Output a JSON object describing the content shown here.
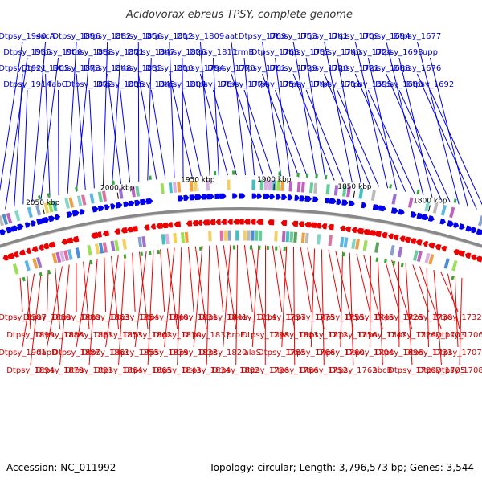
{
  "title": "Acidovorax ebreus TPSY, complete genome",
  "footer": {
    "accession": "Accession: NC_011992",
    "topology": "Topology: circular; Length: 3,796,573 bp; Genes: 3,544"
  },
  "scale_ticks": [
    "2050 kbp",
    "2000 kbp",
    "1950 kbp",
    "1900 kbp",
    "1850 kbp",
    "1800 kbp"
  ],
  "colors": {
    "forward_strand": "#0000ee",
    "reverse_strand": "#ee0000",
    "top_labels": "#0000cc",
    "bottom_labels": "#cc0000",
    "backbone": "#888888"
  },
  "top_labels": [
    "Dtpsy_1940",
    "Dtpsy_1935",
    "Dtpsy_1921",
    "Dtpsy_1914",
    "sucA",
    "Dtpsy_1900",
    "Dtpsy_1905",
    "fabG",
    "Dtpsy_1896",
    "Dtpsy_1888",
    "Dtpsy_1873",
    "Dtpsy_1872",
    "Dtpsy_1882",
    "Dtpsy_1871",
    "Dtpsy_1848",
    "Dtpsy_1836",
    "Dtpsy_1856",
    "Dtpsy_1847",
    "Dtpsy_1835",
    "Dtpsy_1845",
    "Dtpsy_1812",
    "Dtpsy_1826",
    "Dtpsy_1810",
    "Dtpsy_1804",
    "Dtpsy_1809",
    "Dtpsy_1811",
    "Dtpsy_1794",
    "Dtpsy_1784",
    "aat",
    "trmB",
    "Dtpsy_1770",
    "Dtpsy_1774",
    "Dtpsy_1769",
    "Dtpsy_1768",
    "Dtpsy_1761",
    "Dtpsy_1754",
    "Dtpsy_1753",
    "Dtpsy_1733",
    "Dtpsy_1729",
    "Dtpsy_1744",
    "Dtpsy_1741",
    "Dtpsy_1740",
    "Dtpsy_1720",
    "Dtpsy_1711",
    "Dtpsy_1709",
    "Dtpsy_1724",
    "Dtpsy_1721",
    "Dtpsy_1695",
    "Dtpsy_1694",
    "Dtpsy_1693",
    "Dtpsy_1688",
    "Dtpsy_1680",
    "Dtpsy_1677",
    "upp",
    "Dtpsy_1676",
    "Dtpsy_1692"
  ],
  "bottom_labels": [
    "Dtpsy_1907",
    "Dtpsy_1899",
    "Dtpsy_1901",
    "Dtpsy_1894",
    "Dtpsy_1889",
    "Dtpsy_1886",
    "dapD",
    "Dtpsy_1879",
    "Dtpsy_1880",
    "Dtpsy_1881",
    "Dtpsy_1887",
    "Dtpsy_1891",
    "Dtpsy_1863",
    "Dtpsy_1853",
    "Dtpsy_1861",
    "Dtpsy_1864",
    "Dtpsy_1854",
    "Dtpsy_1862",
    "Dtpsy_1855",
    "Dtpsy_1865",
    "Dtpsy_1840",
    "Dtpsy_1830",
    "Dtpsy_1839",
    "Dtpsy_1843",
    "Dtpsy_1831",
    "Dtpsy_1832",
    "Dtpsy_1833",
    "Dtpsy_1834",
    "Dtpsy_1841",
    "prpE",
    "Dtpsy_1820",
    "Dtpsy_1802",
    "Dtpsy_1814",
    "Dtpsy_1798",
    "alaS",
    "Dtpsy_1796",
    "Dtpsy_1797",
    "Dtpsy_1801",
    "Dtpsy_1785",
    "Dtpsy_1786",
    "Dtpsy_1775",
    "Dtpsy_1772",
    "Dtpsy_1766",
    "Dtpsy_1752",
    "Dtpsy_1755",
    "Dtpsy_1756",
    "Dtpsy_1760",
    "Dtpsy_1762",
    "Dtpsy_1745",
    "Dtpsy_1747",
    "Dtpsy_1704",
    "sbcB",
    "Dtpsy_1725",
    "Dtpsy_1726",
    "Dtpsy_1696",
    "Dtpsy_1700",
    "Dtpsy_1730",
    "Dtpsy_1703",
    "Dtpsy_1731",
    "Dtpsy_1705",
    "Dtpsy_1732",
    "Dtpsy_1706",
    "Dtpsy_1707",
    "Dtpsy_1708"
  ]
}
